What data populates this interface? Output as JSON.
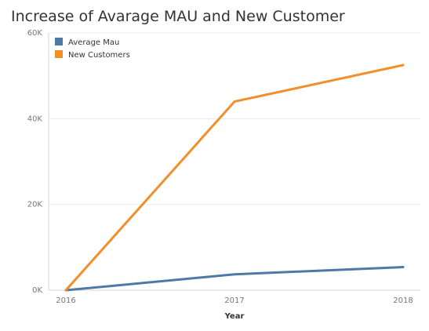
{
  "chart_data": {
    "type": "line",
    "title": "Increase of Avarage MAU and New Customer",
    "xlabel": "Year",
    "ylabel": "",
    "categories": [
      "2016",
      "2017",
      "2018"
    ],
    "ylim": [
      0,
      60000
    ],
    "yticks": [
      0,
      20000,
      40000,
      60000
    ],
    "ytick_labels": [
      "0K",
      "20K",
      "40K",
      "60K"
    ],
    "grid": true,
    "legend_position": "top-left",
    "series": [
      {
        "name": "Average Mau",
        "color": "#4e79a7",
        "values": [
          0,
          3700,
          5400
        ]
      },
      {
        "name": "New Customers",
        "color": "#f28e2b",
        "values": [
          0,
          44000,
          52500
        ]
      }
    ]
  }
}
